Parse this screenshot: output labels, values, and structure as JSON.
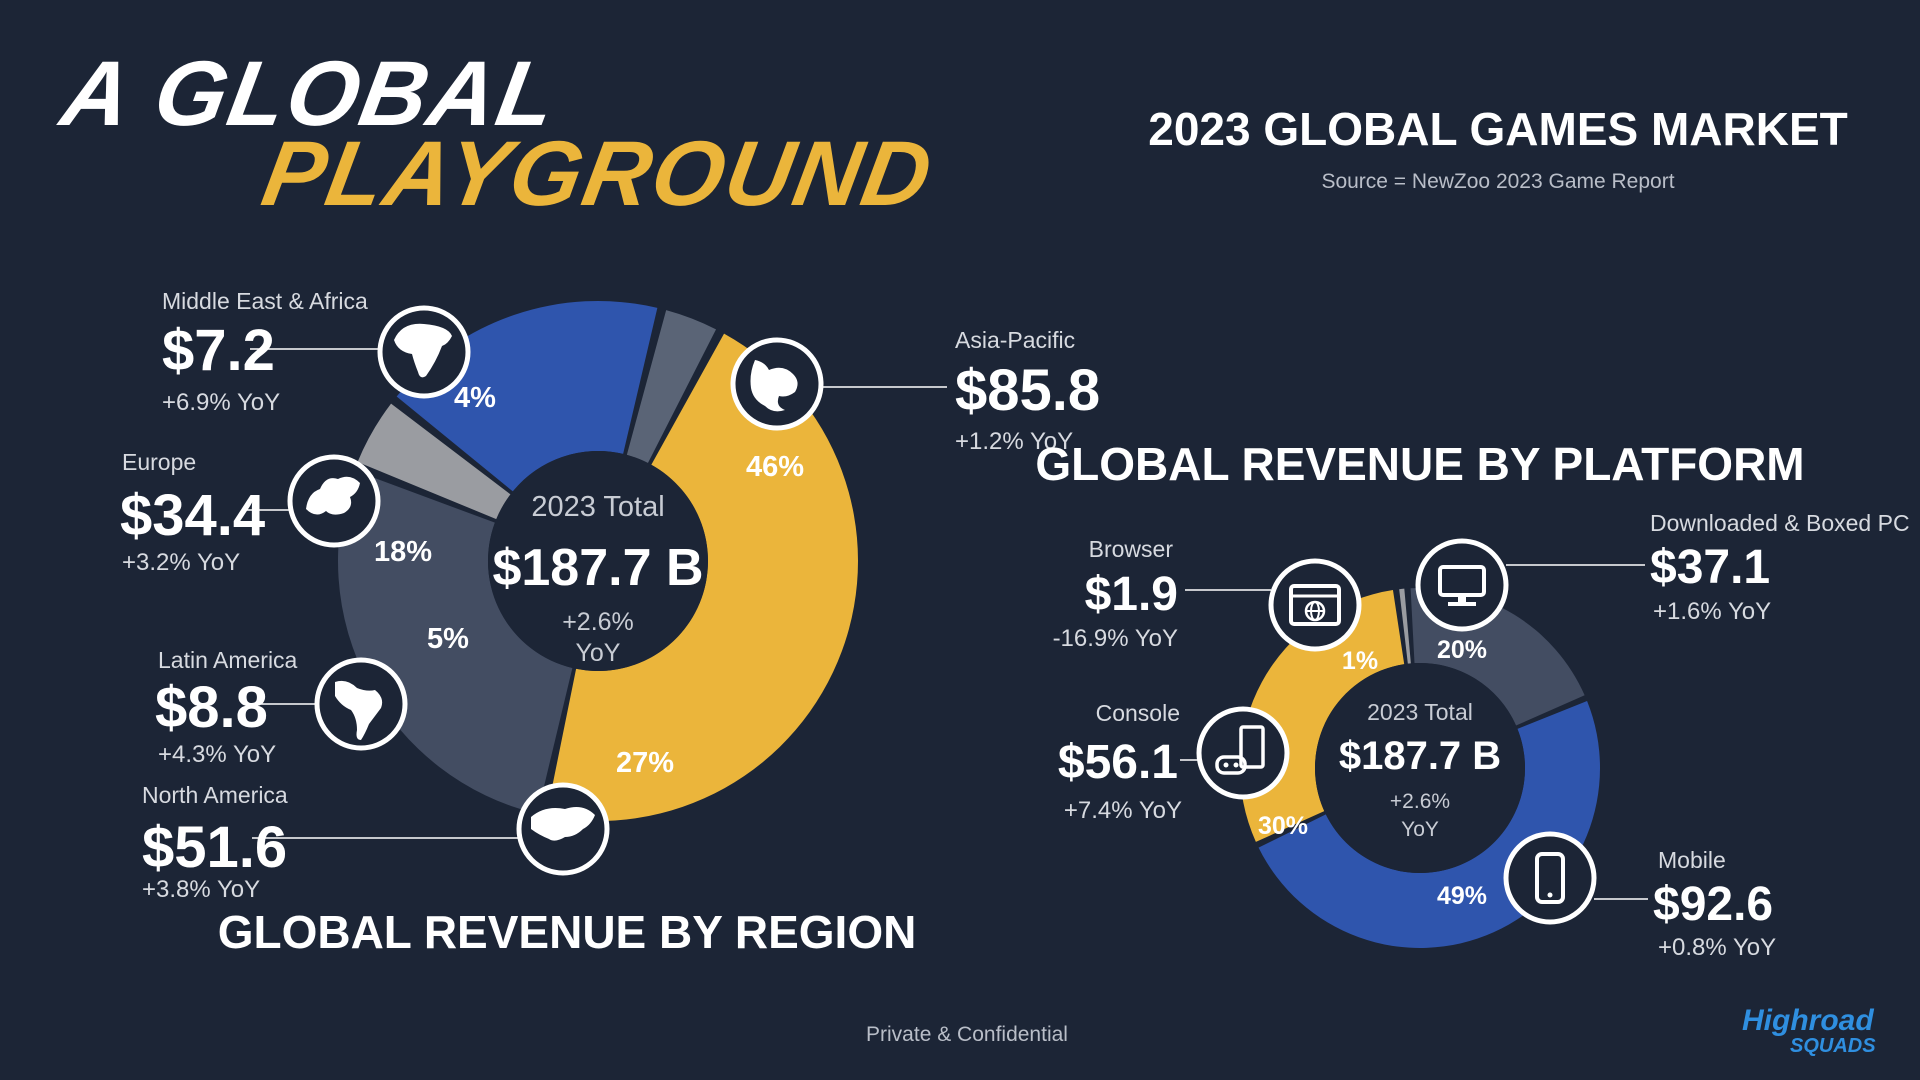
{
  "title": {
    "line1": "A GLOBAL",
    "line2": "PLAYGROUND"
  },
  "market": {
    "heading": "2023 GLOBAL GAMES MARKET",
    "source": "Source = NewZoo 2023 Game Report"
  },
  "footer": {
    "confidential": "Private & Confidential",
    "logo_top": "Highroad",
    "logo_bottom": "SQUADS"
  },
  "colors": {
    "background": "#1c2536",
    "yellow": "#ebb53b",
    "blue": "#2f55ad",
    "slate": "#434d62",
    "grey": "#9a9ca1",
    "dark_slate": "#5a6476",
    "logo_blue": "#2f8fe0"
  },
  "chart_data": [
    {
      "type": "pie",
      "title": "GLOBAL REVENUE BY REGION",
      "center": {
        "label": "2023 Total",
        "value": "$187.7 B",
        "change_line1": "+2.6%",
        "change_line2": "YoY"
      },
      "slices": [
        {
          "name": "Asia-Pacific",
          "value": 85.8,
          "value_label": "$85.8",
          "percent": 46,
          "percent_label": "46%",
          "yoy": "+1.2% YoY",
          "color": "yellow",
          "icon": "asia-map-icon"
        },
        {
          "name": "North America",
          "value": 51.6,
          "value_label": "$51.6",
          "percent": 27,
          "percent_label": "27%",
          "yoy": "+3.8% YoY",
          "color": "slate",
          "icon": "north-america-map-icon"
        },
        {
          "name": "Latin America",
          "value": 8.8,
          "value_label": "$8.8",
          "percent": 5,
          "percent_label": "5%",
          "yoy": "+4.3% YoY",
          "color": "grey",
          "icon": "latin-america-map-icon"
        },
        {
          "name": "Europe",
          "value": 34.4,
          "value_label": "$34.4",
          "percent": 18,
          "percent_label": "18%",
          "yoy": "+3.2% YoY",
          "color": "blue",
          "icon": "europe-map-icon"
        },
        {
          "name": "Middle East & Africa",
          "value": 7.2,
          "value_label": "$7.2",
          "percent": 4,
          "percent_label": "4%",
          "yoy": "+6.9% YoY",
          "color": "dark_slate",
          "icon": "africa-map-icon"
        }
      ]
    },
    {
      "type": "pie",
      "title": "GLOBAL REVENUE BY PLATFORM",
      "center": {
        "label": "2023 Total",
        "value": "$187.7 B",
        "change_line1": "+2.6%",
        "change_line2": "YoY"
      },
      "slices": [
        {
          "name": "Downloaded & Boxed PC",
          "value": 37.1,
          "value_label": "$37.1",
          "percent": 20,
          "percent_label": "20%",
          "yoy": "+1.6% YoY",
          "color": "slate",
          "icon": "monitor-icon"
        },
        {
          "name": "Mobile",
          "value": 92.6,
          "value_label": "$92.6",
          "percent": 49,
          "percent_label": "49%",
          "yoy": "+0.8% YoY",
          "color": "blue",
          "icon": "smartphone-icon"
        },
        {
          "name": "Console",
          "value": 56.1,
          "value_label": "$56.1",
          "percent": 30,
          "percent_label": "30%",
          "yoy": "+7.4% YoY",
          "color": "yellow",
          "icon": "console-icon"
        },
        {
          "name": "Browser",
          "value": 1.9,
          "value_label": "$1.9",
          "percent": 1,
          "percent_label": "1%",
          "yoy": "-16.9% YoY",
          "color": "grey",
          "icon": "browser-icon"
        }
      ]
    }
  ]
}
